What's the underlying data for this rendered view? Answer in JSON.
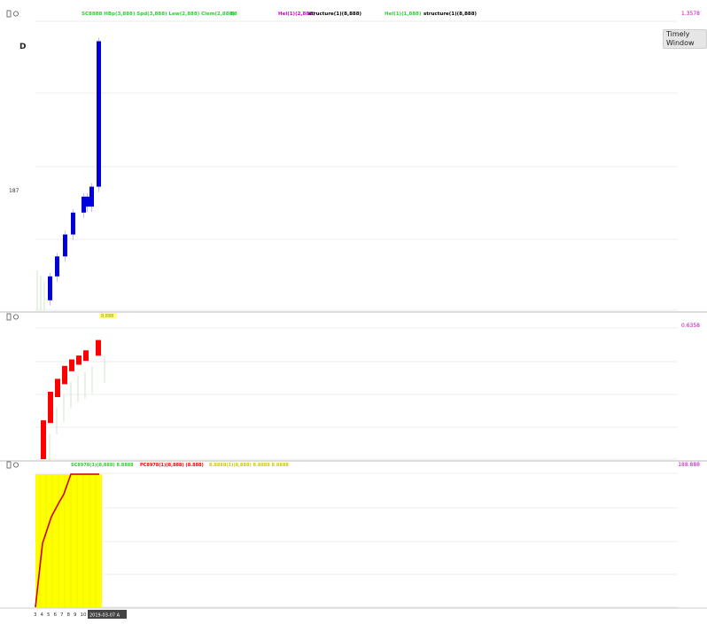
{
  "panels": {
    "main": {
      "icons": [
        "expand-icon",
        "settings-icon"
      ],
      "indicator_labels": [
        {
          "text": "SC8888 HBp(3,888) Spd(3,888) Lew(2,888) Clem(2,888)",
          "color": "#33cc33"
        },
        {
          "text": "88",
          "color": "#33cc33"
        },
        {
          "text": "Hel(1)(2,888)",
          "color": "#cc00cc"
        },
        {
          "text": "structure(1)(8,888)",
          "color": "#000000"
        },
        {
          "text": "Hel(1)(1,888)",
          "color": "#33cc33"
        },
        {
          "text": "structure(1)(8,888)",
          "color": "#000000"
        }
      ],
      "price_scale_value": "1.3578",
      "left_marker": "187",
      "period_badge": "D",
      "legend_toggle": "Timely Window",
      "bar_color": "#0000dd"
    },
    "sub1": {
      "icons": [
        "expand-icon",
        "settings-icon"
      ],
      "top_label": "8,888",
      "right_value": "0.6358",
      "bar_color": "#ff0000"
    },
    "sub2": {
      "icons": [
        "expand-icon",
        "settings-icon"
      ],
      "indicator_labels": [
        {
          "text": "SC8978(1)(8,888) 8.8888",
          "color": "#33cc33"
        },
        {
          "text": "PC8978(1)(8,888) (8.888)",
          "color": "#ff0000"
        },
        {
          "text": "8.8888(1)(8,888) 8.8888 8.8888",
          "color": "#cccc00"
        }
      ],
      "right_value": "188.888",
      "fill_color": "#ffff00",
      "line_color": "#cc0000"
    }
  },
  "time_axis": {
    "labels": [
      "3",
      "4",
      "5",
      "6",
      "7",
      "8",
      "9",
      "10"
    ],
    "cursor_label": "2019-03-07 A"
  },
  "chart_data": [
    {
      "type": "bar",
      "panel": "main",
      "categories": [
        "1",
        "2",
        "3",
        "4",
        "5",
        "6",
        "7",
        "8"
      ],
      "series": [
        {
          "values": [
            [
              -40,
              -28
            ],
            [
              -28,
              -18
            ],
            [
              -18,
              -7
            ],
            [
              -7,
              4
            ],
            [
              4,
              12
            ],
            [
              12,
              7
            ],
            [
              7,
              17
            ],
            [
              17,
              90
            ]
          ]
        }
      ]
    },
    {
      "type": "bar",
      "panel": "sub1",
      "categories": [
        "1",
        "2",
        "3",
        "4",
        "5",
        "6",
        "7",
        "8"
      ],
      "series": [
        {
          "values": [
            0.3,
            0.5,
            0.6,
            0.7,
            0.75,
            0.78,
            0.82,
            0.9
          ]
        }
      ],
      "ylim": [
        0,
        1
      ]
    },
    {
      "type": "area",
      "panel": "sub2",
      "x": [
        0,
        1,
        2,
        3,
        4,
        5,
        6,
        7
      ],
      "series": [
        {
          "values": [
            0,
            48,
            68,
            78,
            85,
            100,
            100,
            100
          ]
        }
      ],
      "ylim": [
        0,
        100
      ]
    }
  ]
}
